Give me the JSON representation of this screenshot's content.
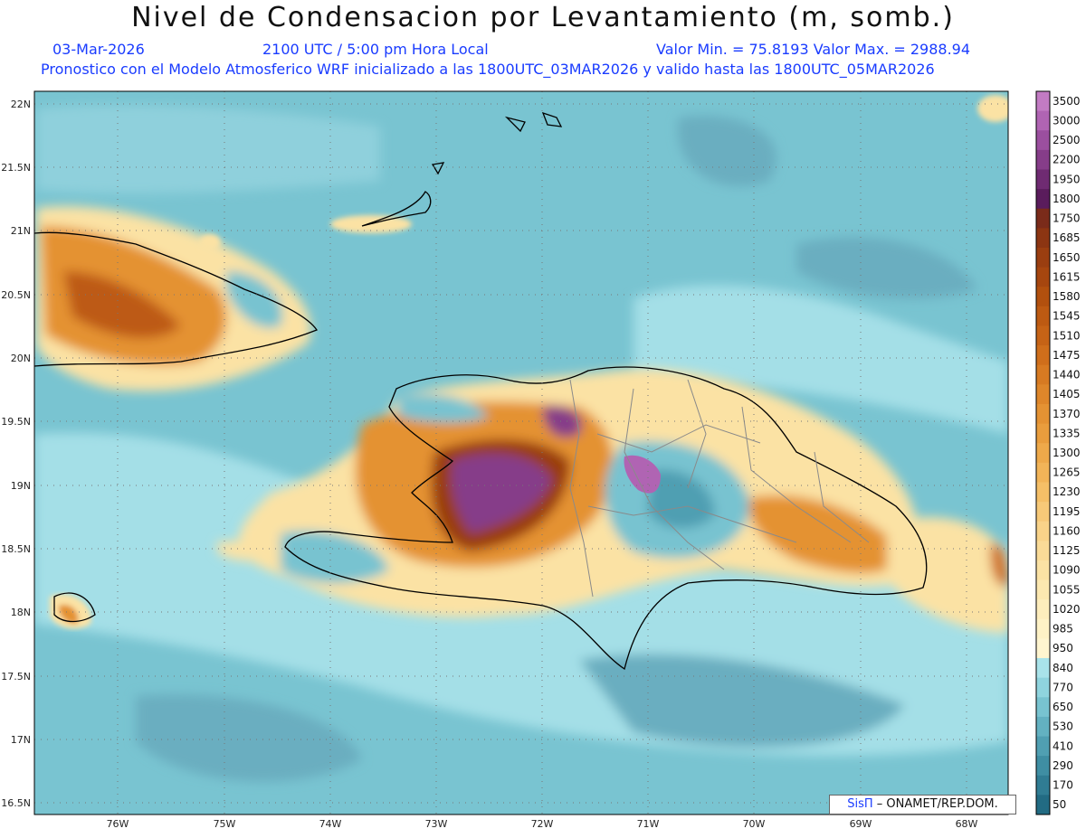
{
  "header": {
    "title": "Nivel de Condensacion por Levantamiento (m, somb.)",
    "date": "03-Mar-2026",
    "time": "2100 UTC / 5:00 pm Hora Local",
    "minmax": "Valor Min. = 75.8193   Valor Max. = 2988.94",
    "model": "Pronostico con el Modelo Atmosferico WRF inicializado a las 1800UTC_03MAR2026 y valido hasta las  1800UTC_05MAR2026"
  },
  "axes": {
    "lat_labels": [
      "22N",
      "21.5N",
      "21N",
      "20.5N",
      "20N",
      "19.5N",
      "19N",
      "18.5N",
      "18N",
      "17.5N",
      "17N",
      "16.5N"
    ],
    "lon_labels": [
      "76W",
      "75W",
      "74W",
      "73W",
      "72W",
      "71W",
      "70W",
      "69W",
      "68W"
    ]
  },
  "colorbar": {
    "levels": [
      "3500",
      "3000",
      "2500",
      "2200",
      "1950",
      "1800",
      "1750",
      "1685",
      "1650",
      "1615",
      "1580",
      "1545",
      "1510",
      "1475",
      "1440",
      "1405",
      "1370",
      "1335",
      "1300",
      "1265",
      "1230",
      "1195",
      "1160",
      "1125",
      "1090",
      "1055",
      "1020",
      "985",
      "950",
      "840",
      "770",
      "650",
      "530",
      "410",
      "290",
      "170",
      "50"
    ],
    "colors": [
      "#c27bc3",
      "#b064b3",
      "#9b4f9f",
      "#863d89",
      "#6f2b72",
      "#5a1c5c",
      "#7a2b1a",
      "#8c3512",
      "#9a3e10",
      "#a6460f",
      "#b2500e",
      "#bd5a12",
      "#c66316",
      "#cf6e1b",
      "#d77a22",
      "#de862a",
      "#e49233",
      "#e99d3d",
      "#eea94a",
      "#f2b458",
      "#f5bf67",
      "#f7c978",
      "#f9d389",
      "#fadb97",
      "#fbe2a4",
      "#fce8b0",
      "#fdedbc",
      "#fef2c6",
      "#fff5cf",
      "#a9e3ea",
      "#8fd4de",
      "#78c3d0",
      "#63b1c1",
      "#509fb2",
      "#3f8ea3",
      "#307c93",
      "#226b83"
    ]
  },
  "credit": {
    "brand": "SisΠ",
    "text": "– ONAMET/REP.DOM."
  }
}
